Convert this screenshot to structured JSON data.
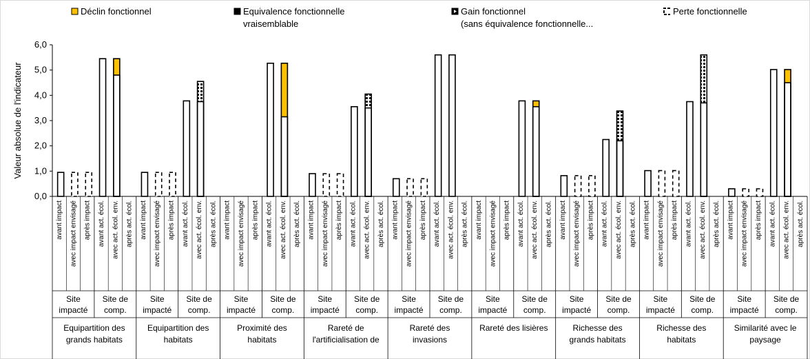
{
  "chart_data": {
    "type": "bar",
    "ylabel": "Valeur absolue de l'indicateur",
    "ylim": [
      0,
      6
    ],
    "yticks": [
      "0,0",
      "1,0",
      "2,0",
      "3,0",
      "4,0",
      "5,0",
      "6,0"
    ],
    "grid": false,
    "legend_position": "top",
    "legend": [
      {
        "key": "declin",
        "label": "Déclin fonctionnel",
        "color": "#ffc000"
      },
      {
        "key": "equiv",
        "label": "Equivalence fonctionnelle vraisemblable",
        "color": "#000000"
      },
      {
        "key": "gain",
        "label": "Gain fonctionnel (sans équivalence fonctionnelle...",
        "color": "#000000"
      },
      {
        "key": "perte",
        "label": "Perte fonctionnelle",
        "color": "#000000"
      }
    ],
    "bar_labels": [
      "avant impact",
      "avec impact envisagé",
      "après impact",
      "avant act. écol.",
      "avec act. écol. env.",
      "après act. écol."
    ],
    "site_labels": [
      [
        "Site",
        "impacté"
      ],
      [
        "Site de",
        "comp."
      ]
    ],
    "groups": [
      {
        "label": [
          "Equipartition des",
          "grands habitats"
        ],
        "bars": [
          {
            "base": 0.95,
            "style": "solid"
          },
          {
            "base": 0.95,
            "style": "dashed"
          },
          {
            "base": 0.95,
            "style": "dashed"
          },
          {
            "base": 5.45,
            "style": "solid"
          },
          {
            "base": 4.8,
            "declin_top": 5.45,
            "style": "solid"
          },
          null
        ]
      },
      {
        "label": [
          "Equipartition des",
          "habitats"
        ],
        "bars": [
          {
            "base": 0.95,
            "style": "solid"
          },
          {
            "base": 0.95,
            "style": "dashed"
          },
          {
            "base": 0.95,
            "style": "dashed"
          },
          {
            "base": 3.78,
            "style": "solid"
          },
          {
            "base": 3.75,
            "gain_top": 4.55,
            "style": "solid"
          },
          null
        ]
      },
      {
        "label": [
          "Proximité des",
          "habitats"
        ],
        "bars": [
          null,
          null,
          null,
          {
            "base": 5.27,
            "style": "solid"
          },
          {
            "base": 3.15,
            "declin_top": 5.27,
            "style": "solid"
          },
          null
        ]
      },
      {
        "label": [
          "Rareté de",
          "l'artificialisation de"
        ],
        "bars": [
          {
            "base": 0.9,
            "style": "solid"
          },
          {
            "base": 0.9,
            "style": "dashed"
          },
          {
            "base": 0.9,
            "style": "dashed"
          },
          {
            "base": 3.55,
            "style": "solid"
          },
          {
            "base": 3.5,
            "gain_top": 4.05,
            "style": "solid"
          },
          null
        ]
      },
      {
        "label": [
          "Rareté des",
          "invasions"
        ],
        "bars": [
          {
            "base": 0.7,
            "style": "solid"
          },
          {
            "base": 0.7,
            "style": "dashed"
          },
          {
            "base": 0.7,
            "style": "dashed"
          },
          {
            "base": 5.6,
            "style": "solid"
          },
          {
            "base": 5.6,
            "style": "solid"
          },
          null
        ]
      },
      {
        "label": [
          "Rareté des lisières"
        ],
        "bars": [
          null,
          null,
          null,
          {
            "base": 3.78,
            "style": "solid"
          },
          {
            "base": 3.55,
            "declin_top": 3.78,
            "style": "solid"
          },
          null
        ]
      },
      {
        "label": [
          "Richesse des",
          "grands habitats"
        ],
        "bars": [
          {
            "base": 0.82,
            "style": "solid"
          },
          {
            "base": 0.82,
            "style": "dashed"
          },
          {
            "base": 0.82,
            "style": "dashed"
          },
          {
            "base": 2.25,
            "style": "solid"
          },
          {
            "base": 2.2,
            "gain_top": 3.38,
            "style": "solid"
          },
          null
        ]
      },
      {
        "label": [
          "Richesse des",
          "habitats"
        ],
        "bars": [
          {
            "base": 1.02,
            "style": "solid"
          },
          {
            "base": 1.02,
            "style": "dashed"
          },
          {
            "base": 1.02,
            "style": "dashed"
          },
          {
            "base": 3.75,
            "style": "solid"
          },
          {
            "base": 3.7,
            "gain_top": 5.6,
            "style": "solid"
          },
          null
        ]
      },
      {
        "label": [
          "Similarité avec le",
          "paysage"
        ],
        "bars": [
          {
            "base": 0.3,
            "style": "solid"
          },
          {
            "base": 0.3,
            "style": "dashed"
          },
          {
            "base": 0.3,
            "style": "dashed"
          },
          {
            "base": 5.02,
            "style": "solid"
          },
          {
            "base": 4.5,
            "declin_top": 5.02,
            "style": "solid"
          },
          null
        ]
      }
    ]
  }
}
